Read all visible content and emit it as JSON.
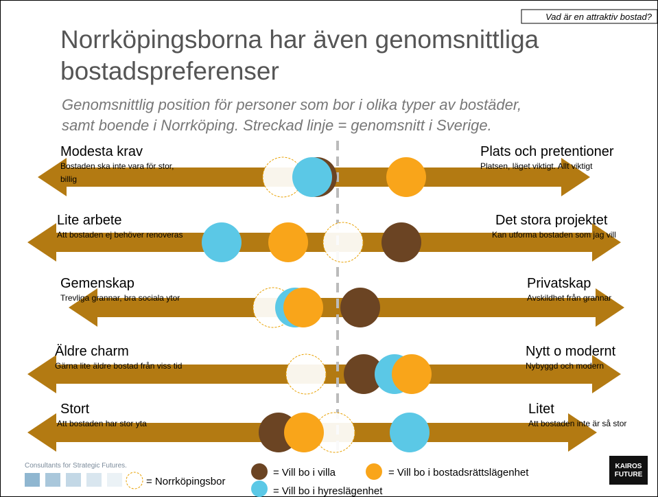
{
  "header": {
    "tag": "Vad är en attraktiv bostad?",
    "title": [
      "Norrköpingsborna har även genomsnittliga",
      "bostadspreferenser"
    ],
    "subtitle": [
      "Genomsnittlig position för personer som bor i olika typer av bostäder,",
      "samt boende i Norrköping. Streckad linje = genomsnitt i Sverige."
    ]
  },
  "rows": [
    {
      "left_title": "Modesta krav",
      "left_text": [
        "Bostaden ska inte vara för stor,",
        "billig"
      ],
      "right_title": "Plats och pretentioner",
      "right_text": [
        "Platsen, läget viktigt. Allt viktigt"
      ]
    },
    {
      "left_title": "Lite arbete",
      "left_text": [
        "Att bostaden ej behöver renoveras"
      ],
      "right_title": "Det stora projektet",
      "right_text": [
        "Kan utforma bostaden som jag vill"
      ]
    },
    {
      "left_title": "Gemenskap",
      "left_text": [
        "Trevliga grannar, bra sociala ytor"
      ],
      "right_title": "Privatskap",
      "right_text": [
        "Avskildhet från grannar"
      ]
    },
    {
      "left_title": "Äldre charm",
      "left_text": [
        "Gärna lite äldre bostad från viss tid"
      ],
      "right_title": "Nytt o modernt",
      "right_text": [
        "Nybyggd och modern"
      ]
    },
    {
      "left_title": "Stort",
      "left_text": [
        "Att bostaden har stor yta"
      ],
      "right_title": "Litet",
      "right_text": [
        "Att bostaden inte är så stor"
      ]
    }
  ],
  "legend": {
    "norrkoping": "= Norrköpingsbor",
    "villa": "= Vill bo i villa",
    "bostadsratt": "= Vill bo i bostadsrättslägenhet",
    "hyres": "= Vill bo i hyreslägenhet"
  },
  "footer": {
    "branding": "Consultants for Strategic Futures.",
    "logo": [
      "KAIROS",
      "FUTURE"
    ]
  }
}
